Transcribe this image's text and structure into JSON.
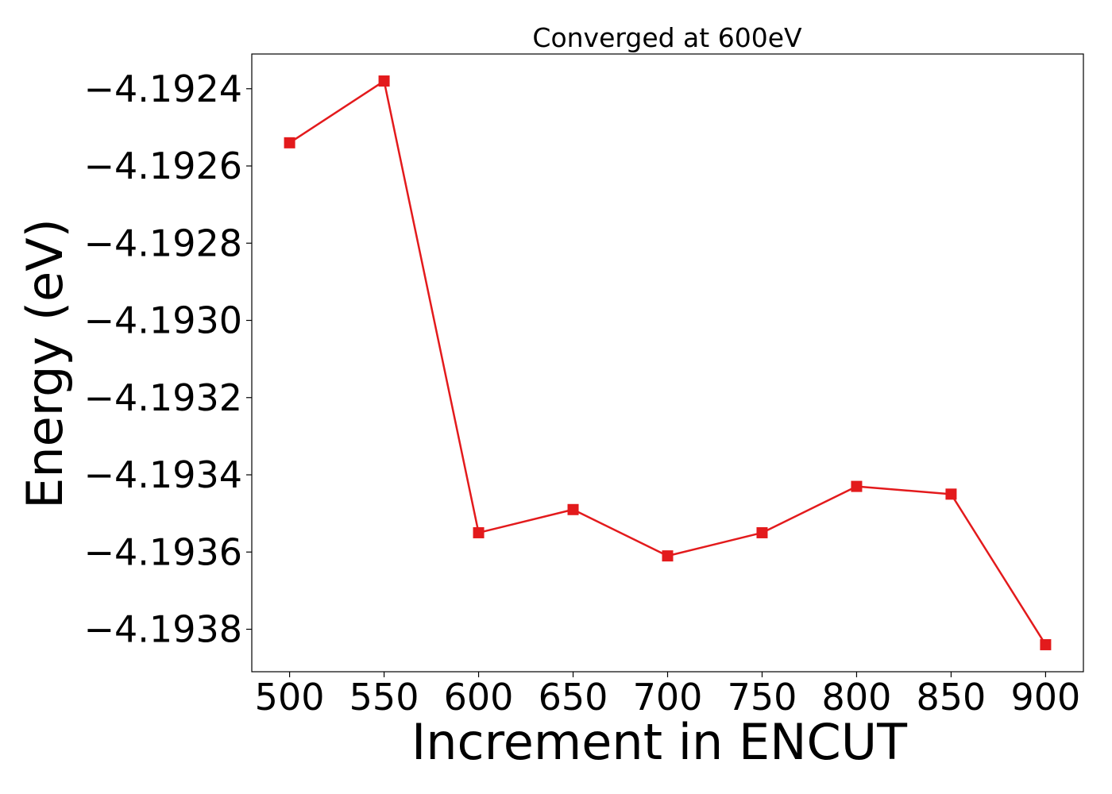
{
  "chart_data": {
    "type": "line",
    "title": "Converged at 600eV",
    "xlabel": "Increment in ENCUT",
    "ylabel": "Energy (eV)",
    "x": [
      500,
      550,
      600,
      650,
      700,
      750,
      800,
      850,
      900
    ],
    "series": [
      {
        "values": [
          -4.19254,
          -4.19238,
          -4.19355,
          -4.19349,
          -4.19361,
          -4.19355,
          -4.19343,
          -4.19345,
          -4.19384
        ],
        "color": "#e31a1c",
        "marker": "square"
      }
    ],
    "xticks": [
      500,
      550,
      600,
      650,
      700,
      750,
      800,
      850,
      900
    ],
    "xtick_labels": [
      "500",
      "550",
      "600",
      "650",
      "700",
      "750",
      "800",
      "850",
      "900"
    ],
    "yticks": [
      -4.1924,
      -4.1926,
      -4.1928,
      -4.193,
      -4.1932,
      -4.1934,
      -4.1936,
      -4.1938
    ],
    "ytick_labels": [
      "−4.1924",
      "−4.1926",
      "−4.1928",
      "−4.1930",
      "−4.1932",
      "−4.1934",
      "−4.1936",
      "−4.1938"
    ],
    "xlim": [
      480,
      920
    ],
    "ylim": [
      -4.19391,
      -4.19231
    ],
    "grid": false,
    "legend": false
  }
}
